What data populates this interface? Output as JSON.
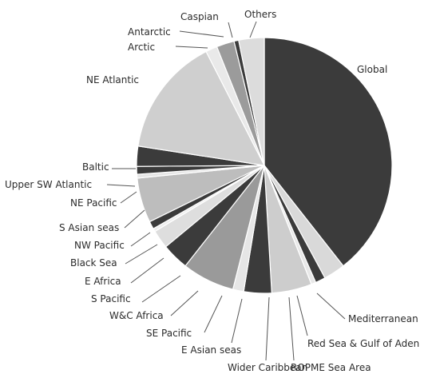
{
  "chart_data": {
    "type": "pie",
    "title": "",
    "slices": [
      {
        "label": "Global",
        "value": 40.3,
        "color": "#3b3b3b"
      },
      {
        "label": "Mediterranean",
        "value": 2.8,
        "color": "#d9d9d9"
      },
      {
        "label": "Red Sea & Gulf of Aden",
        "value": 1.3,
        "color": "#3b3b3b"
      },
      {
        "label": "ROPME Sea Area",
        "value": 0.6,
        "color": "#e8e8e8"
      },
      {
        "label": "Wider Caribbean",
        "value": 5.2,
        "color": "#cdcdcd"
      },
      {
        "label": "E Asian seas",
        "value": 3.6,
        "color": "#3b3b3b"
      },
      {
        "label": "SE Pacific",
        "value": 1.4,
        "color": "#e6e6e6"
      },
      {
        "label": "W&C Africa",
        "value": 6.8,
        "color": "#9a9a9a"
      },
      {
        "label": "S Pacific",
        "value": 3.5,
        "color": "#3b3b3b"
      },
      {
        "label": "E Africa",
        "value": 2.4,
        "color": "#dedede"
      },
      {
        "label": "Black Sea",
        "value": 0.4,
        "color": "#eeeeee"
      },
      {
        "label": "NW Pacific",
        "value": 1.0,
        "color": "#3b3b3b"
      },
      {
        "label": "S Asian seas",
        "value": 5.8,
        "color": "#bdbdbd"
      },
      {
        "label": "NE Pacific",
        "value": 0.5,
        "color": "#e6e6e6"
      },
      {
        "label": "Upper SW Atlantic",
        "value": 1.0,
        "color": "#3b3b3b"
      },
      {
        "label": "Baltic",
        "value": 2.6,
        "color": "#3b3b3b"
      },
      {
        "label": "NE Atlantic",
        "value": 15.4,
        "color": "#cfcfcf"
      },
      {
        "label": "Arctic",
        "value": 1.5,
        "color": "#e9e9e9"
      },
      {
        "label": "Antarctic",
        "value": 2.3,
        "color": "#9b9b9b"
      },
      {
        "label": "Caspian",
        "value": 0.6,
        "color": "#3b3b3b"
      },
      {
        "label": "Others",
        "value": 3.3,
        "color": "#dcdcdc"
      }
    ]
  }
}
